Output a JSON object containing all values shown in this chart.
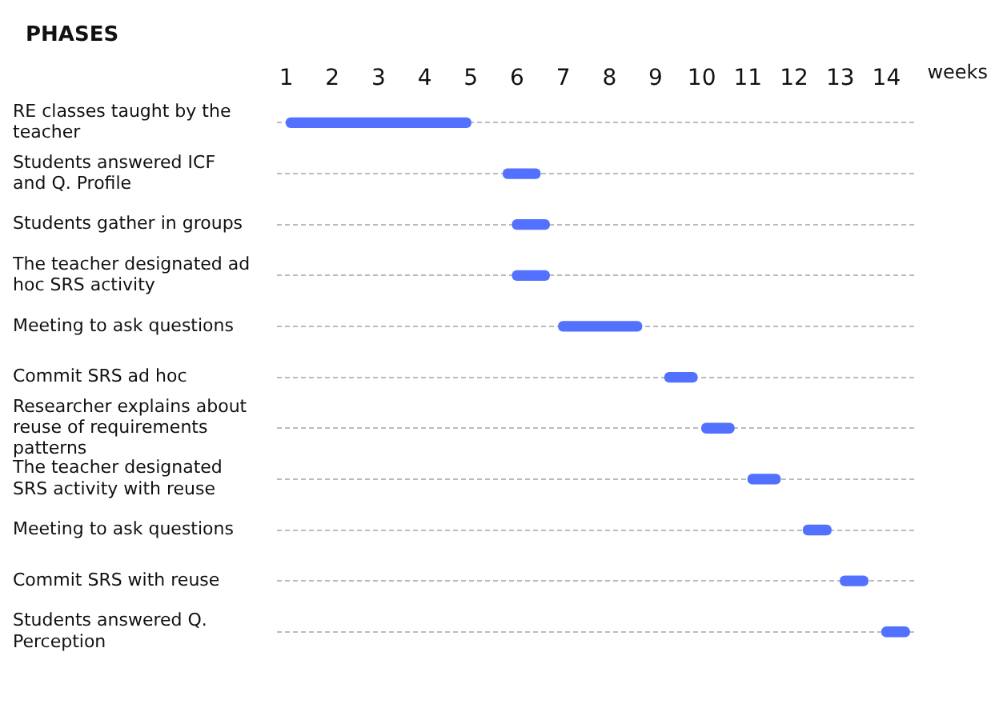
{
  "chart_data": {
    "type": "bar",
    "orientation": "horizontal",
    "ylabel": "PHASES",
    "xlabel": "weeks",
    "categories": [
      "RE classes taught by the teacher",
      "Students answered ICF and Q. Profile",
      "Students gather in groups",
      "The teacher designated ad hoc SRS activity",
      "Meeting to ask questions",
      "Commit SRS ad hoc",
      "Researcher explains about reuse of requirements patterns",
      "The teacher designated SRS activity with reuse",
      "Meeting to ask questions",
      "Commit SRS with reuse",
      "Students answered Q. Perception"
    ],
    "base": [
      1,
      5.7,
      5.9,
      5.9,
      6.9,
      9.2,
      10,
      11,
      12.2,
      13,
      13.9
    ],
    "values": [
      4,
      0.8,
      0.8,
      0.8,
      1.8,
      0.7,
      0.7,
      0.7,
      0.6,
      0.6,
      0.6
    ],
    "color": "#5271ff",
    "xlim": [
      0.8,
      14.6
    ],
    "xticks": [
      1,
      2,
      3,
      4,
      5,
      6,
      7,
      8,
      9,
      10,
      11,
      12,
      13,
      14
    ],
    "grid": "y",
    "line_style": "dashed"
  }
}
